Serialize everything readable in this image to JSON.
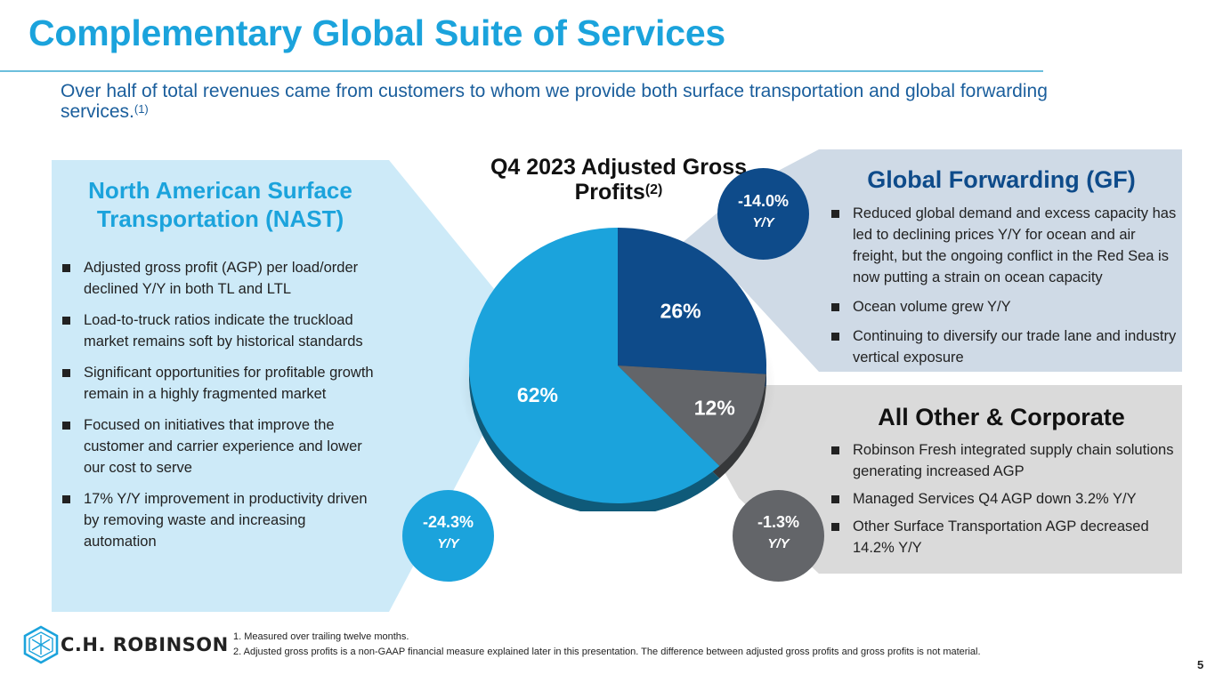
{
  "slide": {
    "title": "Complementary Global Suite of Services",
    "subtitle": "Over half of total revenues came from customers to whom we provide both surface transportation and global forwarding services.",
    "subtitle_ref": "(1)",
    "page_number": "5"
  },
  "colors": {
    "title_blue": "#1ba3dc",
    "nast_blue": "#1ba3dc",
    "gf_navy": "#0e4b8a",
    "other_gray": "#636569",
    "nast_panel": "#cdeaf8",
    "gf_panel": "#cfdae6",
    "other_panel": "#dadada"
  },
  "nast": {
    "title": "North American Surface Transportation (NAST)",
    "bullets": [
      "Adjusted gross profit (AGP) per load/order declined Y/Y in both TL and LTL",
      "Load-to-truck ratios indicate the truckload market remains soft by historical standards",
      "Significant opportunities for profitable growth remain in a highly fragmented market",
      "Focused on initiatives that improve the customer and carrier experience and lower our cost to serve",
      "17% Y/Y improvement in productivity driven by removing waste and increasing automation"
    ],
    "change": "-24.3%",
    "change_label": "Y/Y"
  },
  "gf": {
    "title": "Global Forwarding (GF)",
    "bullets": [
      "Reduced global demand and excess capacity has led to declining prices Y/Y for ocean and air freight, but the ongoing conflict in the Red Sea is now putting a strain on ocean capacity",
      "Ocean volume grew Y/Y",
      "Continuing to diversify our trade lane and industry vertical exposure"
    ],
    "change": "-14.0%",
    "change_label": "Y/Y"
  },
  "other": {
    "title": "All Other & Corporate",
    "bullets": [
      "Robinson Fresh integrated supply chain solutions generating increased AGP",
      "Managed Services Q4 AGP down 3.2% Y/Y",
      "Other Surface Transportation AGP decreased 14.2% Y/Y"
    ],
    "change": "-1.3%",
    "change_label": "Y/Y"
  },
  "chart_data": {
    "type": "pie",
    "title": "Q4 2023 Adjusted Gross Profits",
    "title_ref": "(2)",
    "slices": [
      {
        "name": "Global Forwarding (GF)",
        "value": 26,
        "label": "26%",
        "color": "#0e4b8a"
      },
      {
        "name": "All Other & Corporate",
        "value": 12,
        "label": "12%",
        "color": "#636569"
      },
      {
        "name": "North American Surface Transportation (NAST)",
        "value": 62,
        "label": "62%",
        "color": "#1ba3dc"
      }
    ],
    "start_angle_deg": 0,
    "direction": "clockwise",
    "legend": "none"
  },
  "footnotes": [
    "1.   Measured over trailing twelve months.",
    "2.   Adjusted gross profits is a non-GAAP financial measure explained later in this presentation. The difference between adjusted gross profits and gross profits is not material."
  ],
  "logo": {
    "text": "C.H. ROBINSON",
    "icon": "hexagon-cube-arrows-icon"
  }
}
